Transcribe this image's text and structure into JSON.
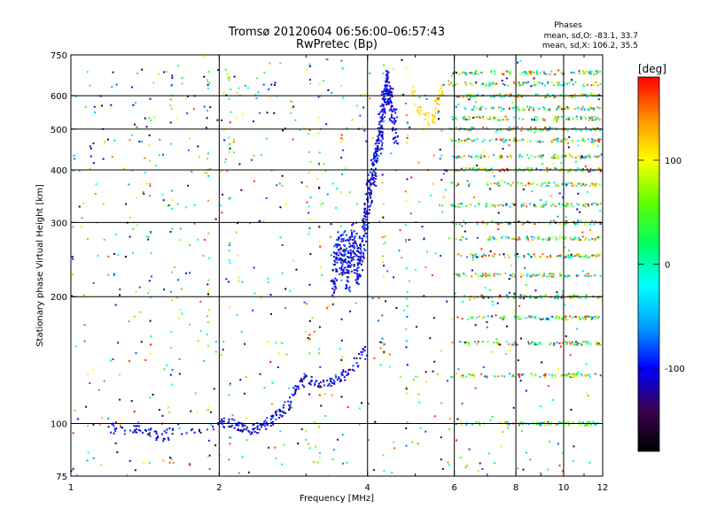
{
  "chart_data": {
    "type": "scatter",
    "title": "Tromsø 20120604 06:56:00–06:57:43",
    "subtitle": "RwPretec (Bp)",
    "xlabel": "Frequency [MHz]",
    "ylabel": "Stationary phase Virtual Height [km]",
    "x_scale": "log",
    "y_scale": "log",
    "xlim": [
      1,
      12
    ],
    "ylim": [
      75,
      750
    ],
    "x_ticks": [
      1,
      2,
      4,
      6,
      8,
      10,
      12
    ],
    "x_tick_labels": [
      "1",
      "2",
      "4",
      "6",
      "8",
      "10",
      "12"
    ],
    "y_ticks": [
      75,
      100,
      200,
      300,
      400,
      500,
      600,
      750
    ],
    "y_tick_labels": [
      "75",
      "100",
      "200",
      "300",
      "400",
      "500",
      "600",
      "750"
    ],
    "grid": true,
    "phase_info": {
      "heading": "Phases",
      "line1": "mean, sd,O: -83.1, 33.7",
      "line2": "mean, sd,X: 106.2, 35.5"
    },
    "colorbar": {
      "label": "[deg]",
      "range": [
        -180,
        180
      ],
      "ticks": [
        100,
        0,
        -100
      ],
      "tick_labels": [
        "100",
        "0",
        "-100"
      ],
      "colors": [
        "#000000",
        "#3a0050",
        "#0000ff",
        "#00a0ff",
        "#00ffff",
        "#00ff60",
        "#60ff00",
        "#ffff00",
        "#ff9000",
        "#ff0000"
      ]
    },
    "traces": [
      {
        "name": "O-mode F-layer trace (blue)",
        "points": [
          [
            3.4,
            205
          ],
          [
            3.45,
            235
          ],
          [
            3.5,
            260
          ],
          [
            3.55,
            240
          ],
          [
            3.6,
            270
          ],
          [
            3.65,
            225
          ],
          [
            3.7,
            250
          ],
          [
            3.75,
            285
          ],
          [
            3.8,
            230
          ],
          [
            3.85,
            240
          ],
          [
            3.9,
            255
          ],
          [
            3.95,
            300
          ],
          [
            4.0,
            330
          ],
          [
            4.05,
            360
          ],
          [
            4.1,
            390
          ],
          [
            4.15,
            420
          ],
          [
            4.2,
            460
          ],
          [
            4.25,
            500
          ],
          [
            4.3,
            560
          ],
          [
            4.35,
            600
          ],
          [
            4.4,
            630
          ],
          [
            4.45,
            590
          ],
          [
            4.5,
            540
          ],
          [
            4.6,
            500
          ]
        ]
      },
      {
        "name": "O-mode E-layer trace (blue)",
        "points": [
          [
            1.2,
            98
          ],
          [
            1.3,
            97
          ],
          [
            1.4,
            96
          ],
          [
            1.5,
            93
          ],
          [
            1.6,
            95
          ],
          [
            2.0,
            100
          ],
          [
            2.1,
            100
          ],
          [
            2.2,
            98
          ],
          [
            2.3,
            97
          ],
          [
            2.4,
            98
          ],
          [
            2.5,
            100
          ],
          [
            2.6,
            103
          ],
          [
            2.7,
            107
          ],
          [
            2.8,
            113
          ],
          [
            2.9,
            123
          ],
          [
            3.0,
            128
          ],
          [
            3.2,
            125
          ],
          [
            3.4,
            125
          ],
          [
            3.6,
            130
          ],
          [
            3.8,
            140
          ],
          [
            4.0,
            150
          ]
        ]
      },
      {
        "name": "X-mode trace (yellow)",
        "points": [
          [
            4.9,
            620
          ],
          [
            5.0,
            580
          ],
          [
            5.2,
            540
          ],
          [
            5.4,
            520
          ],
          [
            5.5,
            560
          ],
          [
            5.6,
            600
          ],
          [
            5.7,
            630
          ]
        ]
      }
    ]
  }
}
